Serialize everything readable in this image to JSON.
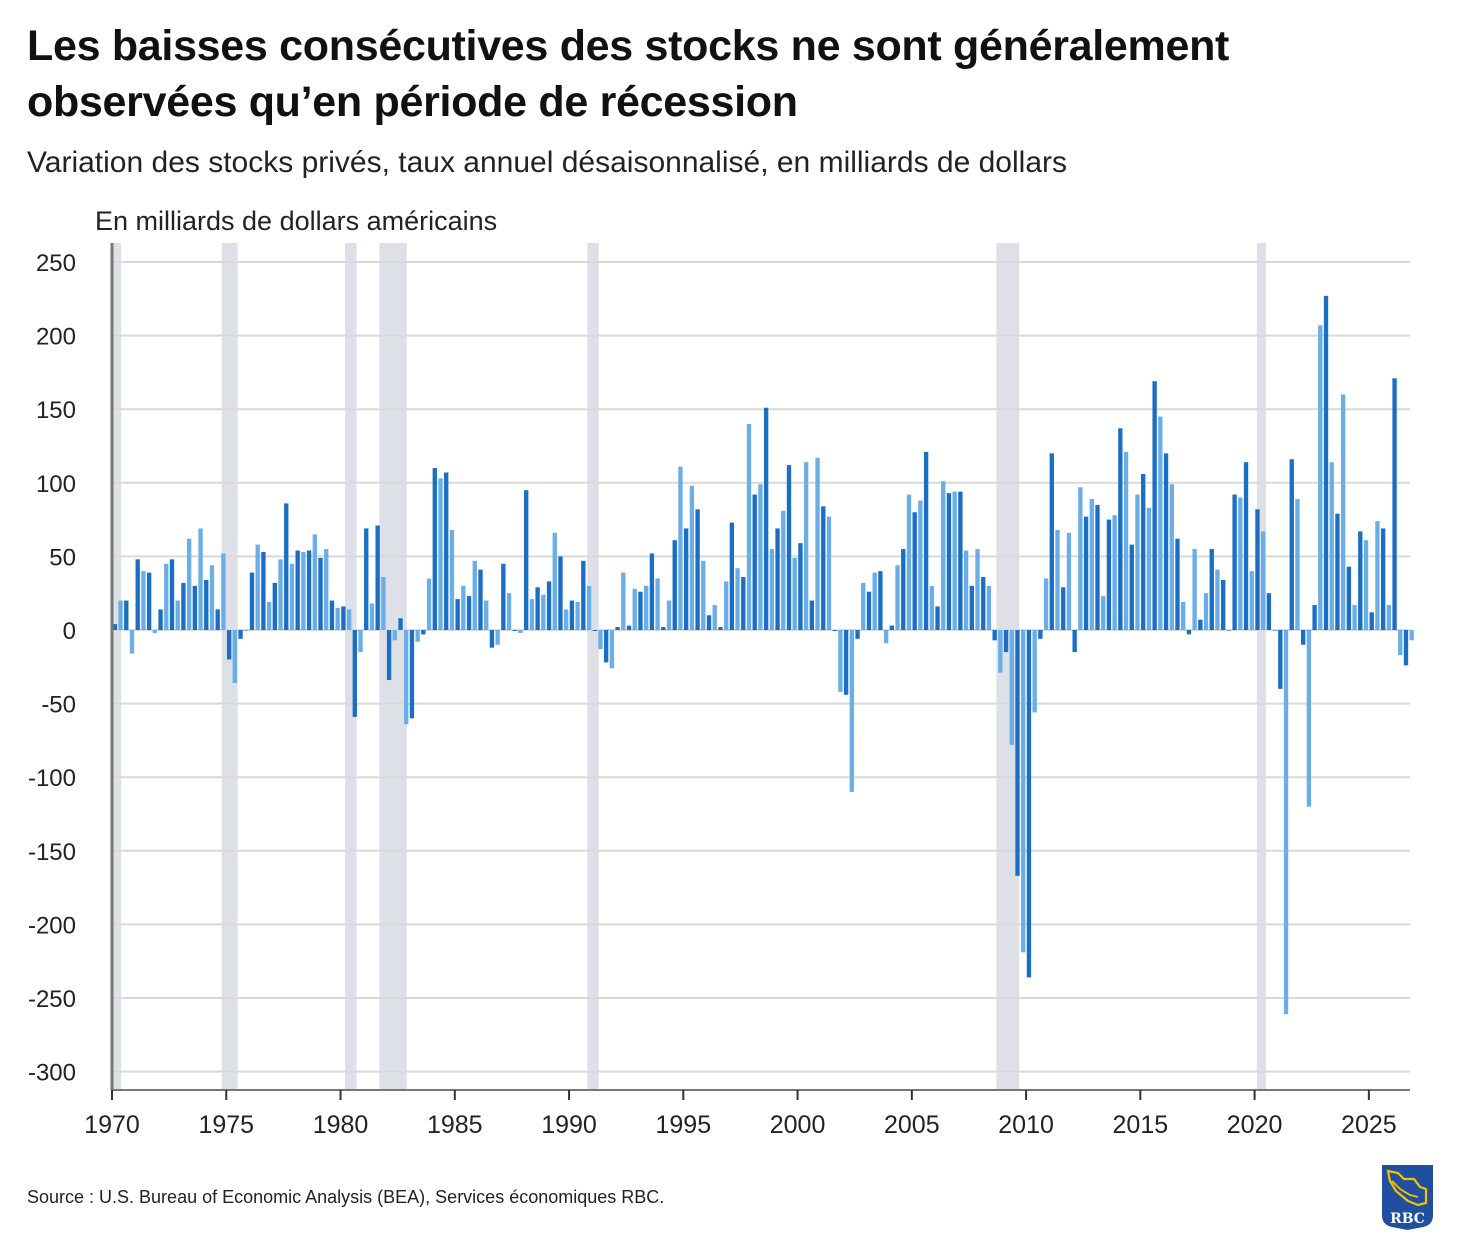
{
  "header": {
    "title": "Les baisses consécutives des stocks ne sont généralement observées qu’en période de récession",
    "subtitle": "Variation des stocks privés, taux annuel désaisonnalisé, en milliards de dollars"
  },
  "footer": {
    "source": "Source : U.S. Bureau of Economic Analysis (BEA), Services économiques RBC.",
    "logo_text": "RBC"
  },
  "colors": {
    "bar_dark": "#1a6fc4",
    "bar_light": "#6aaee8",
    "recession": "#dde0e6",
    "grid": "#d9d9d9",
    "axis": "#777777"
  },
  "chart_data": {
    "type": "bar",
    "title": "Les baisses consécutives des stocks ne sont généralement observées qu’en période de récession",
    "subtitle": "Variation des stocks privés, taux annuel désaisonnalisé, en milliards de dollars",
    "ylabel": "En milliards de dollars américains",
    "xlabel": "",
    "frequency": "quarterly",
    "start": [
      1970,
      1
    ],
    "ylim": [
      -310,
      260
    ],
    "yticks": [
      250,
      200,
      150,
      100,
      50,
      0,
      -50,
      -100,
      -150,
      -200,
      -250,
      -300
    ],
    "xticks": [
      1970,
      1975,
      1980,
      1985,
      1990,
      1995,
      2000,
      2005,
      2010,
      2015,
      2020,
      2025
    ],
    "xlim": [
      1970,
      2026.8
    ],
    "grid": true,
    "legend": "none",
    "recessions": [
      [
        1970.0,
        1970.4
      ],
      [
        1974.8,
        1975.5
      ],
      [
        1980.2,
        1980.7
      ],
      [
        1981.7,
        1982.9
      ],
      [
        1990.8,
        1991.3
      ],
      [
        2008.7,
        2009.7
      ],
      [
        2020.1,
        2020.5
      ]
    ],
    "values": [
      4,
      20,
      20,
      -16,
      48,
      40,
      39,
      -2,
      14,
      45,
      48,
      20,
      32,
      62,
      30,
      69,
      34,
      44,
      14,
      52,
      -20,
      -36,
      -6,
      0,
      39,
      58,
      53,
      19,
      32,
      48,
      86,
      45,
      54,
      53,
      54,
      65,
      49,
      55,
      20,
      15,
      16,
      14,
      -59,
      -15,
      69,
      18,
      71,
      36,
      -34,
      -7,
      8,
      -64,
      -60,
      -8,
      -3,
      35,
      110,
      103,
      107,
      68,
      21,
      30,
      23,
      47,
      41,
      20,
      -12,
      -10,
      45,
      25,
      0,
      -2,
      95,
      21,
      29,
      24,
      33,
      66,
      50,
      14,
      20,
      19,
      47,
      30,
      0,
      -13,
      -22,
      -26,
      2,
      39,
      3,
      28,
      26,
      30,
      52,
      35,
      2,
      20,
      61,
      111,
      69,
      98,
      82,
      47,
      10,
      17,
      2,
      33,
      73,
      42,
      36,
      140,
      92,
      99,
      151,
      55,
      69,
      81,
      112,
      49,
      59,
      114,
      20,
      117,
      84,
      77,
      0,
      -42,
      -44,
      -110,
      -6,
      32,
      26,
      39,
      40,
      -9,
      3,
      44,
      55,
      92,
      80,
      88,
      121,
      30,
      16,
      101,
      93,
      94,
      94,
      54,
      30,
      55,
      36,
      30,
      -7,
      -29,
      -15,
      -78,
      -167,
      -219,
      -236,
      -56,
      -6,
      35,
      120,
      68,
      29,
      66,
      -15,
      97,
      77,
      89,
      85,
      23,
      75,
      78,
      137,
      121,
      58,
      92,
      106,
      83,
      169,
      145,
      120,
      99,
      62,
      19,
      -3,
      55,
      7,
      25,
      55,
      41,
      34,
      0,
      92,
      90,
      114,
      40,
      82,
      67,
      25,
      0,
      -40,
      -261,
      116,
      89,
      -10,
      -120,
      17,
      207,
      227,
      114,
      79,
      160,
      43,
      17,
      67,
      61,
      12,
      74,
      69,
      17,
      171,
      -17,
      -24,
      -7
    ]
  }
}
